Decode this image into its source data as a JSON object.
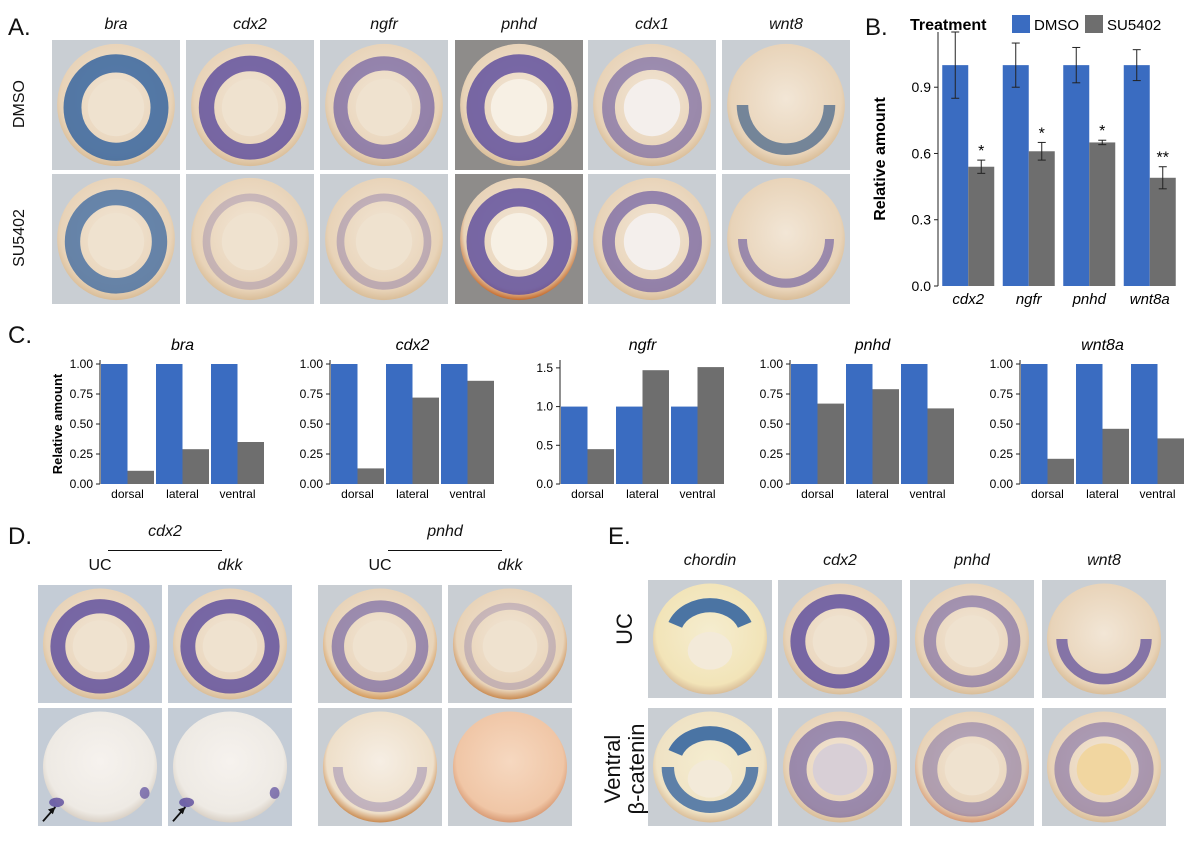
{
  "panels": {
    "a": {
      "letter": "A.",
      "genes": [
        "bra",
        "cdx2",
        "ngfr",
        "pnhd",
        "cdx1",
        "wnt8"
      ],
      "rows": [
        "DMSO",
        "SU5402"
      ]
    },
    "b": {
      "letter": "B."
    },
    "c": {
      "letter": "C."
    },
    "d": {
      "letter": "D.",
      "groups": [
        {
          "gene": "cdx2",
          "conditions": [
            "UC",
            "dkk"
          ]
        },
        {
          "gene": "pnhd",
          "conditions": [
            "UC",
            "dkk"
          ]
        }
      ]
    },
    "e": {
      "letter": "E.",
      "genes": [
        "chordin",
        "cdx2",
        "pnhd",
        "wnt8"
      ],
      "rows": [
        "UC",
        "Ventral\nβ-catenin"
      ]
    }
  },
  "colors": {
    "dmso": "#3a6cc1",
    "su5402": "#6e6e6e",
    "stain": "#5a4a9c",
    "blue_stain": "#2d5f9e"
  },
  "chart_data": [
    {
      "type": "bar",
      "panel": "B",
      "legend_title": "Treatment",
      "legend_position": "top",
      "categories": [
        "cdx2",
        "ngfr",
        "pnhd",
        "wnt8a"
      ],
      "series": [
        {
          "name": "DMSO",
          "values": [
            1.0,
            1.0,
            1.0,
            1.0
          ],
          "errors": [
            0.15,
            0.1,
            0.08,
            0.07
          ]
        },
        {
          "name": "SU5402",
          "values": [
            0.54,
            0.61,
            0.65,
            0.49
          ],
          "errors": [
            0.03,
            0.04,
            0.01,
            0.05
          ]
        }
      ],
      "significance": [
        "*",
        "*",
        "*",
        "**"
      ],
      "ylabel": "Relative amount",
      "ylim": [
        0,
        1.15
      ],
      "yticks": [
        "0.0",
        "0.3",
        "0.6",
        "0.9"
      ]
    },
    {
      "type": "bar",
      "panel": "C",
      "title": "bra",
      "categories": [
        "dorsal",
        "lateral",
        "ventral"
      ],
      "series": [
        {
          "values": [
            1.0,
            1.0,
            1.0
          ]
        },
        {
          "values": [
            0.11,
            0.29,
            0.35
          ]
        }
      ],
      "ylabel": "Relative amount",
      "ylim": [
        0,
        1.0
      ],
      "yticks": [
        "0.00",
        "0.25",
        "0.50",
        "0.75",
        "1.00"
      ]
    },
    {
      "type": "bar",
      "panel": "C",
      "title": "cdx2",
      "categories": [
        "dorsal",
        "lateral",
        "ventral"
      ],
      "series": [
        {
          "values": [
            1.0,
            1.0,
            1.0
          ]
        },
        {
          "values": [
            0.13,
            0.72,
            0.86
          ]
        }
      ],
      "ylim": [
        0,
        1.0
      ],
      "yticks": [
        "0.00",
        "0.25",
        "0.50",
        "0.75",
        "1.00"
      ]
    },
    {
      "type": "bar",
      "panel": "C",
      "title": "ngfr",
      "categories": [
        "dorsal",
        "lateral",
        "ventral"
      ],
      "series": [
        {
          "values": [
            1.0,
            1.0,
            1.0
          ]
        },
        {
          "values": [
            0.45,
            1.47,
            1.51
          ]
        }
      ],
      "ylim": [
        0,
        1.55
      ],
      "yticks": [
        "0.0",
        "0.5",
        "1.0",
        "1.5"
      ]
    },
    {
      "type": "bar",
      "panel": "C",
      "title": "pnhd",
      "categories": [
        "dorsal",
        "lateral",
        "ventral"
      ],
      "series": [
        {
          "values": [
            1.0,
            1.0,
            1.0
          ]
        },
        {
          "values": [
            0.67,
            0.79,
            0.63
          ]
        }
      ],
      "ylim": [
        0,
        1.0
      ],
      "yticks": [
        "0.00",
        "0.25",
        "0.50",
        "0.75",
        "1.00"
      ]
    },
    {
      "type": "bar",
      "panel": "C",
      "title": "wnt8a",
      "categories": [
        "dorsal",
        "lateral",
        "ventral"
      ],
      "series": [
        {
          "values": [
            1.0,
            1.0,
            1.0
          ]
        },
        {
          "values": [
            0.21,
            0.46,
            0.38
          ]
        }
      ],
      "ylim": [
        0,
        1.0
      ],
      "yticks": [
        "0.00",
        "0.25",
        "0.50",
        "0.75",
        "1.00"
      ]
    }
  ]
}
